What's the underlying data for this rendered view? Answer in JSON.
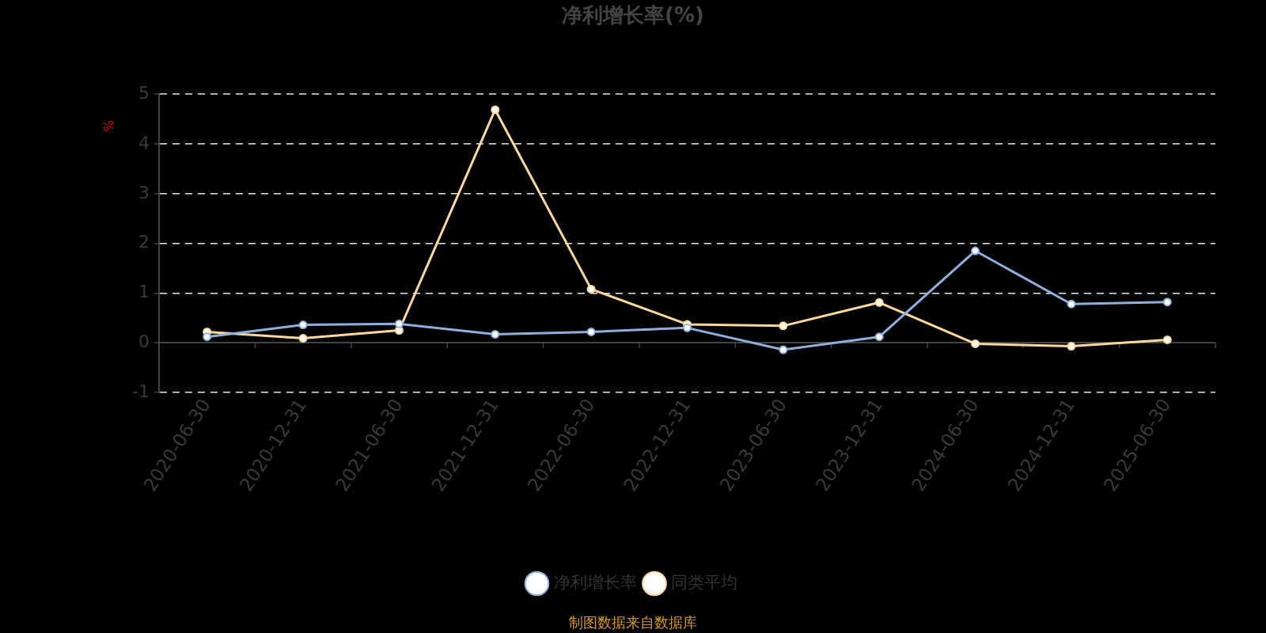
{
  "chart_data": {
    "type": "line",
    "title": "净利增长率(%)",
    "ylabel": "%",
    "categories": [
      "2020-06-30",
      "2020-12-31",
      "2021-06-30",
      "2021-12-31",
      "2022-06-30",
      "2022-12-31",
      "2023-06-30",
      "2023-12-31",
      "2024-06-30",
      "2024-12-31",
      "2025-06-30"
    ],
    "series": [
      {
        "name": "净利增长率",
        "color": "#8eb0de",
        "values": [
          0.12,
          0.36,
          0.38,
          0.17,
          0.22,
          0.3,
          -0.14,
          0.12,
          1.85,
          0.78,
          0.82
        ]
      },
      {
        "name": "同类平均",
        "color": "#fdd89b",
        "values": [
          0.22,
          0.09,
          0.25,
          4.69,
          1.08,
          0.37,
          0.34,
          0.81,
          -0.02,
          -0.07,
          0.06
        ]
      }
    ],
    "ylim": [
      -1,
      5
    ],
    "yticks": [
      -1,
      0,
      1,
      2,
      3,
      4,
      5
    ],
    "grid": "y",
    "legend": "bottom",
    "marker": "circle",
    "line_style": "solid",
    "annotations": [
      "制图数据来自数据库"
    ]
  }
}
